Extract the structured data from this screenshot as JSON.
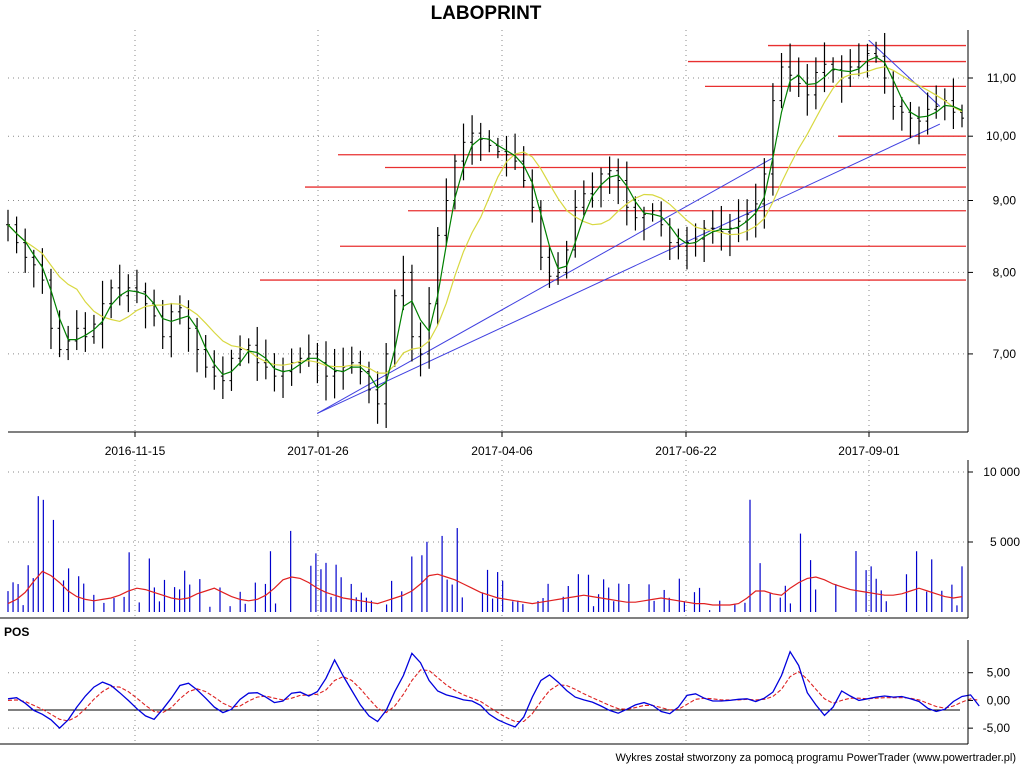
{
  "chart_data": [
    {
      "panel": "price",
      "type": "candlestick",
      "title": "LABOPRINT",
      "xlabel": "",
      "ylabel": "",
      "x_tick_labels": [
        "2016-11-15",
        "2017-01-26",
        "2017-04-06",
        "2017-06-22",
        "2017-09-01"
      ],
      "y_tick_labels": [
        "7,00",
        "8,00",
        "9,00",
        "10,00",
        "11,00"
      ],
      "y_ticks": [
        7,
        8,
        9,
        10,
        11
      ],
      "ylim": [
        6.2,
        11.9
      ],
      "log_scale": true,
      "grid": true,
      "colors": {
        "price_bars": "#000000",
        "short_ma": "#008000",
        "long_ma": "#d8d840",
        "support_resistance": "#e83030",
        "trendlines": "#4040e0",
        "grid": "#888888"
      },
      "close_series_approx": [
        8.65,
        8.4,
        8.2,
        8.1,
        7.9,
        7.3,
        7.05,
        7.15,
        7.3,
        7.2,
        7.35,
        7.6,
        7.8,
        7.7,
        7.8,
        7.75,
        7.6,
        7.45,
        7.2,
        7.5,
        7.55,
        7.3,
        7.05,
        6.85,
        6.75,
        6.7,
        6.95,
        7.05,
        7.1,
        6.9,
        6.85,
        6.75,
        6.8,
        6.9,
        6.95,
        7.0,
        6.9,
        6.75,
        6.8,
        6.85,
        6.9,
        6.8,
        6.6,
        6.45,
        7.0,
        7.7,
        8.0,
        7.2,
        7.0,
        7.6,
        8.5,
        9.0,
        9.6,
        9.9,
        10.05,
        9.95,
        9.85,
        9.75,
        9.7,
        9.6,
        9.3,
        8.9,
        8.2,
        7.95,
        8.0,
        8.3,
        8.9,
        9.1,
        9.2,
        9.4,
        9.45,
        9.3,
        8.9,
        8.75,
        8.8,
        8.85,
        8.65,
        8.4,
        8.35,
        8.4,
        8.45,
        8.6,
        8.6,
        8.55,
        8.6,
        8.7,
        8.8,
        8.95,
        9.4,
        10.6,
        11.2,
        11.05,
        10.9,
        10.7,
        11.1,
        11.25,
        11.15,
        11.0,
        11.2,
        11.3,
        11.45,
        11.4,
        11.0,
        10.5,
        10.4,
        10.3,
        10.25,
        10.45,
        10.5,
        10.6,
        10.4,
        10.3
      ],
      "support_resistance_levels": [
        11.6,
        11.3,
        10.85,
        10.0,
        9.7,
        9.5,
        9.2,
        8.85,
        8.35,
        7.9
      ],
      "trendlines": [
        {
          "from": [
            "2017-01-26",
            6.35
          ],
          "to": [
            "2017-07-25",
            9.65
          ]
        },
        {
          "from": [
            "2017-01-26",
            6.35
          ],
          "to": [
            "2017-09-29",
            10.2
          ]
        },
        {
          "from": [
            "2017-09-01",
            11.7
          ],
          "to": [
            "2017-09-29",
            10.5
          ]
        }
      ]
    },
    {
      "panel": "volume",
      "type": "bar",
      "y_tick_labels": [
        "5 000",
        "10 000"
      ],
      "y_ticks": [
        5000,
        10000
      ],
      "ylim": [
        0,
        10500
      ],
      "colors": {
        "bars": "#0000cc",
        "average": "#e02020"
      },
      "volume_avg_approx": [
        600,
        900,
        1400,
        2200,
        2900,
        2600,
        2100,
        1500,
        1100,
        900,
        800,
        900,
        1000,
        1200,
        1500,
        1700,
        1600,
        1400,
        1200,
        1000,
        900,
        1000,
        1300,
        1500,
        1700,
        1400,
        1100,
        900,
        800,
        900,
        1200,
        1700,
        2300,
        2500,
        2400,
        2100,
        1700,
        1400,
        1200,
        1000,
        900,
        800,
        700,
        600,
        800,
        1000,
        1200,
        1500,
        2000,
        2600,
        2700,
        2500,
        2300,
        2000,
        1700,
        1400,
        1200,
        1000,
        900,
        800,
        700,
        600,
        700,
        800,
        900,
        1000,
        1100,
        1200,
        1100,
        1000,
        900,
        800,
        700,
        700,
        800,
        900,
        1000,
        900,
        800,
        700,
        600,
        600,
        500,
        500,
        500,
        600,
        1000,
        1500,
        1500,
        1300,
        1200,
        1700,
        2100,
        2400,
        2500,
        2300,
        2000,
        1800,
        1600,
        1500,
        1400,
        1300,
        1200,
        1200,
        1300,
        1500,
        1700,
        1500,
        1300,
        1100,
        1000,
        1100
      ]
    },
    {
      "panel": "oscillator",
      "type": "line",
      "label": "POS",
      "y_tick_labels": [
        "-5,00",
        "0,00",
        "5,00"
      ],
      "y_ticks": [
        -5,
        0,
        5
      ],
      "ylim": [
        -7.5,
        10
      ],
      "colors": {
        "pos": "#0000dd",
        "signal": "#dd2222"
      },
      "pos_approx": [
        0.3,
        0.5,
        -0.5,
        -1.8,
        -2.5,
        -3.5,
        -5.0,
        -3.5,
        -1.2,
        0.8,
        2.4,
        3.3,
        2.7,
        1.4,
        0.0,
        -1.5,
        -2.8,
        -3.4,
        -1.6,
        0.4,
        2.7,
        3.1,
        1.9,
        0.4,
        -1.2,
        -2.2,
        -1.6,
        0.2,
        1.3,
        1.4,
        0.6,
        -0.4,
        -0.1,
        1.3,
        1.5,
        0.8,
        1.6,
        4.0,
        7.3,
        4.4,
        1.8,
        -0.8,
        -2.8,
        -3.8,
        -1.8,
        1.6,
        4.5,
        8.5,
        6.8,
        3.6,
        1.7,
        1.0,
        0.6,
        0.1,
        -0.1,
        -0.9,
        -2.5,
        -3.5,
        -4.2,
        -4.8,
        -3.0,
        0.6,
        3.6,
        4.6,
        3.3,
        1.8,
        0.6,
        0.1,
        -0.3,
        -1.0,
        -1.8,
        -2.3,
        -1.6,
        -0.8,
        -0.4,
        -0.9,
        -2.0,
        -2.4,
        -1.2,
        0.9,
        1.2,
        0.4,
        -0.1,
        -0.1,
        0.0,
        0.2,
        0.3,
        -0.2,
        0.4,
        1.5,
        4.5,
        8.8,
        6.3,
        1.4,
        -0.8,
        -2.7,
        -1.2,
        1.7,
        0.8,
        0.0,
        0.3,
        0.6,
        0.8,
        0.6,
        0.7,
        0.3,
        -0.2,
        -1.4,
        -2.0,
        -1.6,
        -0.2,
        0.7,
        1.0,
        -1.0
      ],
      "signal_approx": [
        0.0,
        0.1,
        -0.2,
        -0.9,
        -1.6,
        -2.5,
        -3.4,
        -3.7,
        -2.9,
        -1.5,
        0.2,
        1.6,
        2.5,
        2.4,
        1.6,
        0.4,
        -0.9,
        -2.0,
        -2.2,
        -1.3,
        0.3,
        1.6,
        2.1,
        1.6,
        0.6,
        -0.5,
        -1.2,
        -1.0,
        -0.1,
        0.6,
        0.8,
        0.4,
        0.1,
        0.4,
        0.9,
        1.0,
        1.1,
        1.9,
        3.6,
        4.3,
        3.6,
        2.1,
        0.3,
        -1.4,
        -2.2,
        -1.0,
        1.1,
        3.6,
        5.5,
        5.4,
        4.1,
        2.8,
        1.8,
        1.0,
        0.4,
        -0.2,
        -1.2,
        -2.2,
        -3.1,
        -3.8,
        -3.8,
        -2.4,
        -0.2,
        1.8,
        2.8,
        2.7,
        2.0,
        1.2,
        0.5,
        -0.2,
        -0.9,
        -1.5,
        -1.6,
        -1.3,
        -0.9,
        -0.9,
        -1.3,
        -1.7,
        -1.6,
        -0.7,
        0.2,
        0.4,
        0.3,
        0.1,
        0.1,
        0.1,
        0.2,
        0.1,
        0.2,
        0.7,
        2.0,
        4.3,
        5.2,
        3.8,
        2.0,
        0.3,
        -0.5,
        0.0,
        0.4,
        0.4,
        0.3,
        0.4,
        0.5,
        0.5,
        0.5,
        0.4,
        0.1,
        -0.5,
        -1.1,
        -1.4,
        -1.0,
        -0.3,
        0.3,
        0.0
      ]
    }
  ],
  "footer": {
    "credit": "Wykres został stworzony za pomocą programu PowerTrader (www.powertrader.pl)"
  }
}
